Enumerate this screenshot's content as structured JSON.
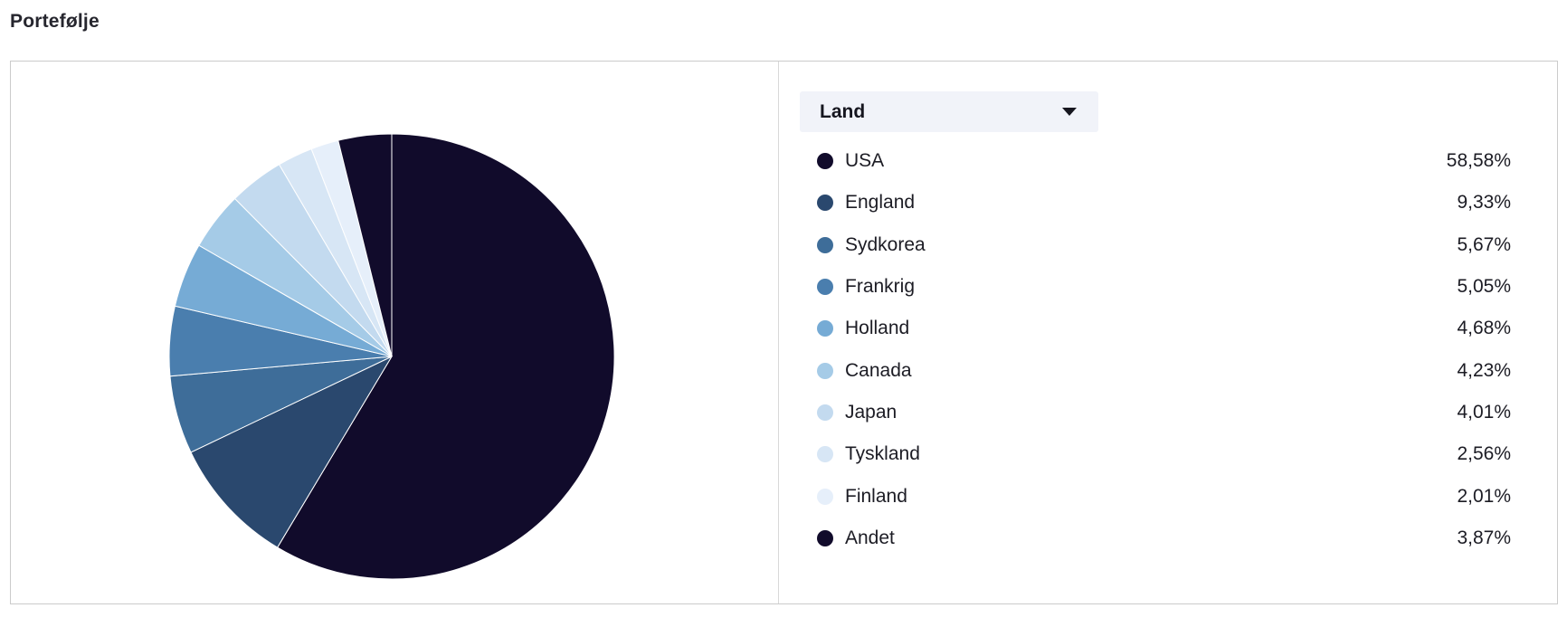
{
  "title": "Portefølje",
  "panel": {
    "dropdown": {
      "label": "Land",
      "icon": "chevron-down-icon"
    }
  },
  "chart_data": {
    "type": "pie",
    "title": "Portefølje",
    "legend_title": "Land",
    "legend_position": "right",
    "start_angle_deg": 0,
    "direction": "clockwise",
    "labels": [
      "USA",
      "England",
      "Sydkorea",
      "Frankrig",
      "Holland",
      "Canada",
      "Japan",
      "Tyskland",
      "Finland",
      "Andet"
    ],
    "values": [
      58.58,
      9.33,
      5.67,
      5.05,
      4.68,
      4.23,
      4.01,
      2.56,
      2.01,
      3.87
    ],
    "display_values": [
      "58,58%",
      "9,33%",
      "5,67%",
      "5,05%",
      "4,68%",
      "4,23%",
      "4,01%",
      "2,56%",
      "2,01%",
      "3,87%"
    ],
    "colors": [
      "#110B2B",
      "#2A486E",
      "#3E6D99",
      "#4A7EAE",
      "#76ABD5",
      "#A5CBE7",
      "#C3DAEF",
      "#D7E6F5",
      "#E6EFFA",
      "#110B2B"
    ],
    "slice_border_color": "#FFFFFF"
  },
  "colors": {
    "dropdown_bg": "#F1F3F9",
    "panel_border": "#CBCBCB",
    "divider": "#D8D8D8",
    "text": "#1C1C24",
    "title_text": "#26262E"
  }
}
